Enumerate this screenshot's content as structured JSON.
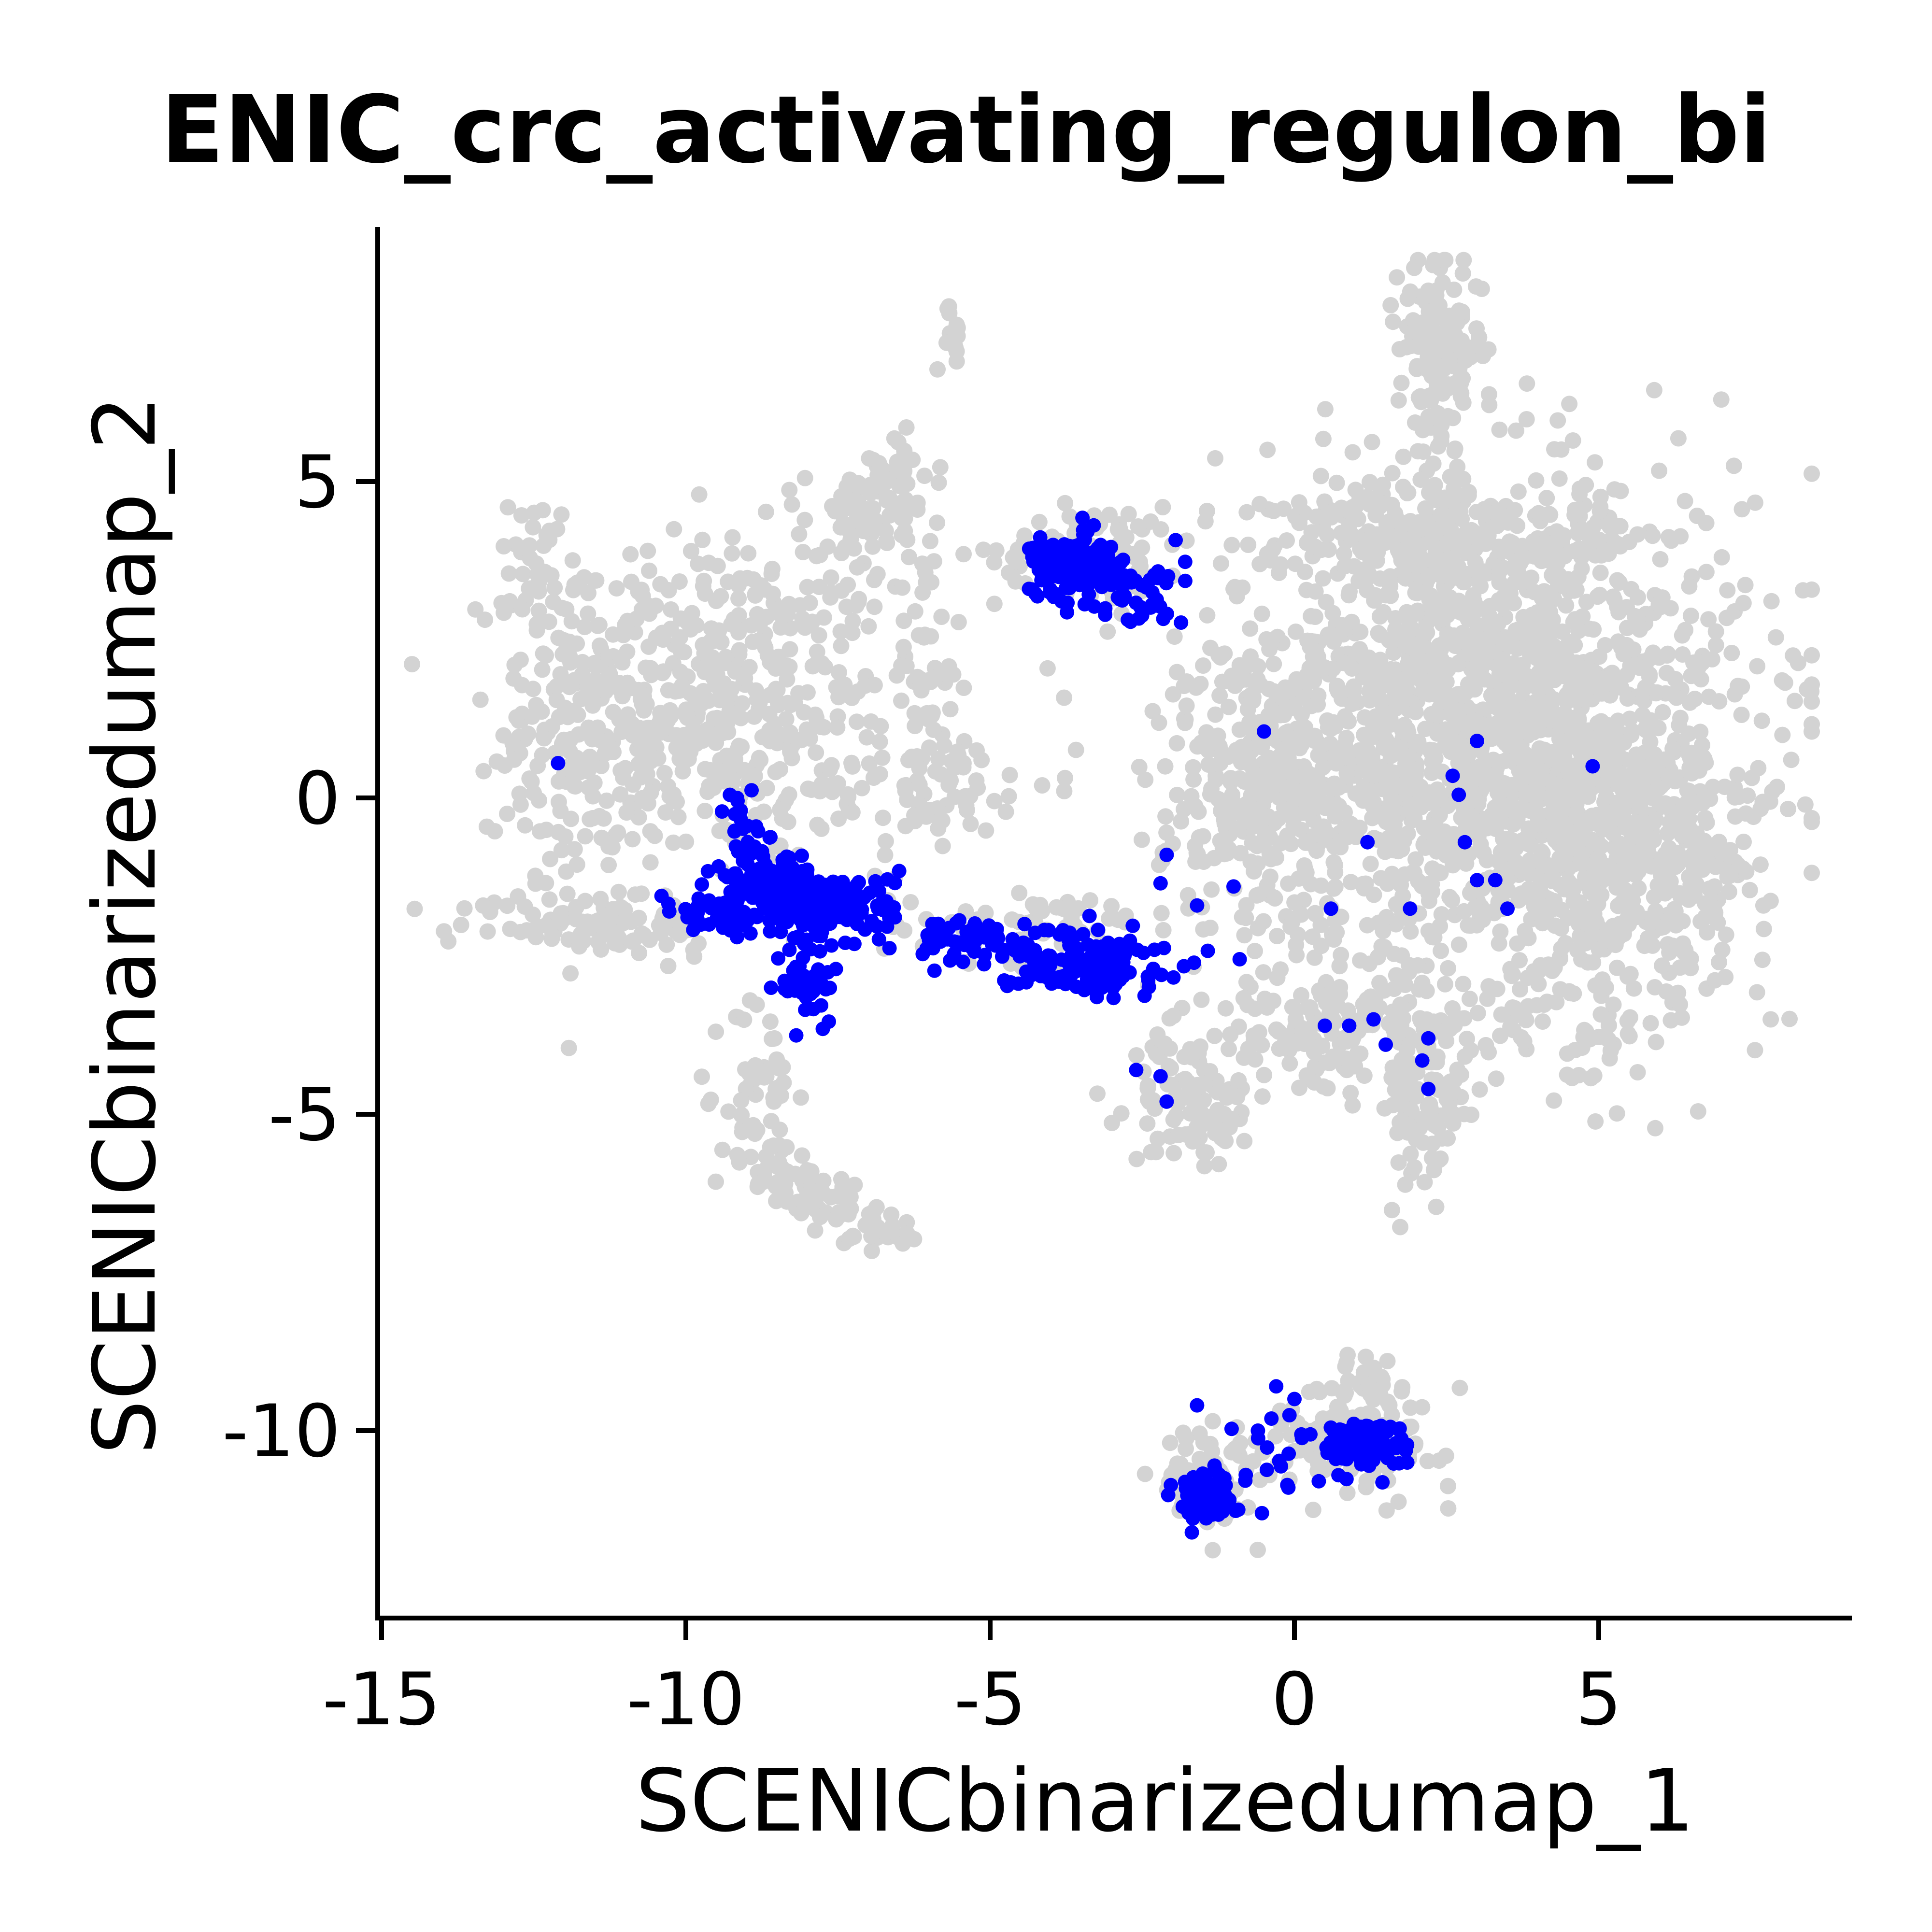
{
  "chart_data": {
    "type": "scatter",
    "title": "ENIC_crc_activating_regulon_bi",
    "xlabel": "SCENICbinarizedumap_1",
    "ylabel": "SCENICbinarizedumap_2",
    "xlim": [
      -15,
      9
    ],
    "ylim": [
      -13,
      9
    ],
    "xticks": [
      "-15",
      "-10",
      "-5",
      "0",
      "5"
    ],
    "yticks": [
      "5",
      "0",
      "-5",
      "-10"
    ],
    "xtick_values": [
      -15,
      -10,
      -5,
      0,
      5
    ],
    "ytick_values": [
      5,
      0,
      -5,
      -10
    ],
    "grid": false,
    "legend": "none",
    "colors": {
      "background_cells": "#d3d3d3",
      "highlighted_cells": "#0000ff"
    },
    "background_clusters": [
      {
        "cx": -9.6,
        "cy": 1.5,
        "sx": 1.5,
        "sy": 1.3,
        "n": 500
      },
      {
        "cx": -11.9,
        "cy": 0.8,
        "sx": 0.6,
        "sy": 1.3,
        "n": 110
      },
      {
        "cx": -12.4,
        "cy": 3.6,
        "sx": 0.25,
        "sy": 0.6,
        "n": 40
      },
      {
        "cx": -7.1,
        "cy": 4.3,
        "sx": 0.5,
        "sy": 0.5,
        "n": 60
      },
      {
        "cx": -6.6,
        "cy": 5.2,
        "sx": 0.3,
        "sy": 0.3,
        "n": 20
      },
      {
        "cx": -5.6,
        "cy": 7.3,
        "sx": 0.15,
        "sy": 0.25,
        "n": 14
      },
      {
        "cx": -6.1,
        "cy": 1.8,
        "sx": 0.3,
        "sy": 1.4,
        "n": 60
      },
      {
        "cx": -11.4,
        "cy": -2.0,
        "sx": 1.2,
        "sy": 0.25,
        "n": 90
      },
      {
        "cx": -6.0,
        "cy": 0.2,
        "sx": 1.0,
        "sy": 0.4,
        "n": 70
      },
      {
        "cx": -8.8,
        "cy": -4.6,
        "sx": 0.3,
        "sy": 0.8,
        "n": 45
      },
      {
        "cx": -8.6,
        "cy": -5.9,
        "sx": 0.4,
        "sy": 0.3,
        "n": 30
      },
      {
        "cx": -7.7,
        "cy": -6.3,
        "sx": 0.5,
        "sy": 0.2,
        "n": 30
      },
      {
        "cx": -6.9,
        "cy": -6.8,
        "sx": 0.4,
        "sy": 0.2,
        "n": 30
      },
      {
        "cx": -3.3,
        "cy": 3.9,
        "sx": 0.8,
        "sy": 0.35,
        "n": 90
      },
      {
        "cx": -4.3,
        "cy": -2.0,
        "sx": 1.3,
        "sy": 0.3,
        "n": 60
      },
      {
        "cx": 2.4,
        "cy": 7.1,
        "sx": 0.35,
        "sy": 0.7,
        "n": 150
      },
      {
        "cx": 3.0,
        "cy": 1.2,
        "sx": 2.2,
        "sy": 1.8,
        "n": 1700
      },
      {
        "cx": 4.7,
        "cy": -1.0,
        "sx": 1.2,
        "sy": 1.2,
        "n": 300
      },
      {
        "cx": -0.5,
        "cy": 0.0,
        "sx": 0.8,
        "sy": 1.2,
        "n": 200
      },
      {
        "cx": 2.5,
        "cy": 4.2,
        "sx": 1.4,
        "sy": 0.4,
        "n": 200
      },
      {
        "cx": 0.9,
        "cy": -3.7,
        "sx": 1.4,
        "sy": 0.5,
        "n": 180
      },
      {
        "cx": -1.7,
        "cy": -4.8,
        "sx": 0.5,
        "sy": 0.5,
        "n": 90
      },
      {
        "cx": 2.2,
        "cy": -5.0,
        "sx": 0.35,
        "sy": 0.8,
        "n": 80
      },
      {
        "cx": 5.8,
        "cy": -1.0,
        "sx": 1.0,
        "sy": 1.0,
        "n": 150
      },
      {
        "cx": 7.2,
        "cy": -1.1,
        "sx": 0.3,
        "sy": 0.15,
        "n": 15
      },
      {
        "cx": 4.9,
        "cy": -3.8,
        "sx": 0.25,
        "sy": 0.4,
        "n": 20
      },
      {
        "cx": 1.0,
        "cy": -10.0,
        "sx": 0.8,
        "sy": 0.45,
        "n": 120
      },
      {
        "cx": -1.4,
        "cy": -10.8,
        "sx": 0.4,
        "sy": 0.4,
        "n": 70
      },
      {
        "cx": 1.1,
        "cy": -9.1,
        "sx": 0.2,
        "sy": 0.2,
        "n": 15
      }
    ],
    "highlighted_clusters": [
      {
        "cx": -3.7,
        "cy": 3.7,
        "sx": 0.3,
        "sy": 0.22,
        "n": 180
      },
      {
        "cx": -2.8,
        "cy": 3.3,
        "sx": 0.5,
        "sy": 0.3,
        "n": 60
      },
      {
        "cx": -7.7,
        "cy": -1.7,
        "sx": 0.6,
        "sy": 0.25,
        "n": 200
      },
      {
        "cx": -8.6,
        "cy": -1.3,
        "sx": 0.4,
        "sy": 0.3,
        "n": 80
      },
      {
        "cx": -9.3,
        "cy": -1.8,
        "sx": 0.4,
        "sy": 0.15,
        "n": 40
      },
      {
        "cx": -8.0,
        "cy": -2.8,
        "sx": 0.2,
        "sy": 0.5,
        "n": 50
      },
      {
        "cx": -9.1,
        "cy": -0.5,
        "sx": 0.2,
        "sy": 0.35,
        "n": 20
      },
      {
        "cx": -5.5,
        "cy": -2.2,
        "sx": 0.6,
        "sy": 0.15,
        "n": 50
      },
      {
        "cx": -3.5,
        "cy": -2.6,
        "sx": 0.7,
        "sy": 0.25,
        "n": 140
      },
      {
        "cx": -1.5,
        "cy": -11.0,
        "sx": 0.25,
        "sy": 0.2,
        "n": 70
      },
      {
        "cx": 1.1,
        "cy": -10.2,
        "sx": 0.35,
        "sy": 0.18,
        "n": 120
      },
      {
        "cx": -0.3,
        "cy": -10.2,
        "sx": 0.5,
        "sy": 0.4,
        "n": 15
      }
    ],
    "highlighted_points": [
      [
        -12.1,
        0.55
      ],
      [
        -0.5,
        1.05
      ],
      [
        3.0,
        0.9
      ],
      [
        4.9,
        0.5
      ],
      [
        2.6,
        0.35
      ],
      [
        2.7,
        0.05
      ],
      [
        1.2,
        -0.7
      ],
      [
        2.8,
        -0.7
      ],
      [
        -2.1,
        -0.9
      ],
      [
        -2.2,
        -1.35
      ],
      [
        -1.0,
        -1.4
      ],
      [
        3.0,
        -1.3
      ],
      [
        3.3,
        -1.3
      ],
      [
        0.6,
        -1.75
      ],
      [
        1.9,
        -1.75
      ],
      [
        3.5,
        -1.75
      ],
      [
        -1.6,
        -1.7
      ],
      [
        -0.9,
        -2.55
      ],
      [
        -2.3,
        -2.4
      ],
      [
        0.5,
        -3.6
      ],
      [
        0.9,
        -3.6
      ],
      [
        1.3,
        -3.5
      ],
      [
        1.5,
        -3.9
      ],
      [
        2.2,
        -3.8
      ],
      [
        2.1,
        -4.15
      ],
      [
        2.2,
        -4.6
      ],
      [
        -2.6,
        -4.3
      ],
      [
        -2.2,
        -4.4
      ],
      [
        -2.1,
        -4.8
      ],
      [
        -0.6,
        -10.0
      ],
      [
        -0.3,
        -9.3
      ],
      [
        0.0,
        -9.5
      ],
      [
        -0.8,
        -10.7
      ],
      [
        -0.1,
        -10.9
      ],
      [
        0.4,
        -10.8
      ],
      [
        -1.6,
        -9.6
      ],
      [
        -10.4,
        -1.55
      ],
      [
        -8.6,
        -3.0
      ]
    ]
  }
}
